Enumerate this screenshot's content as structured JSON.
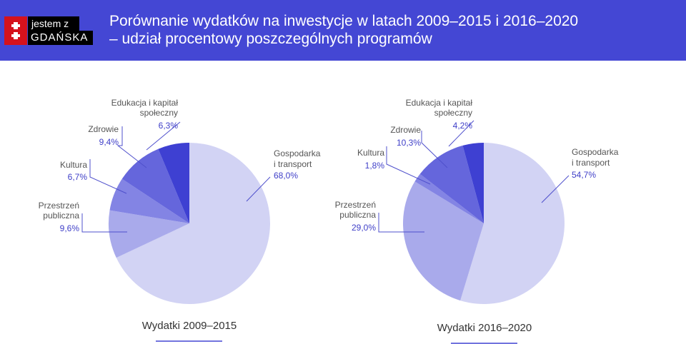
{
  "logo": {
    "line1": "jestem z",
    "line2": "GDAŃSKA"
  },
  "title": {
    "line1": "Porównanie wydatków na inwestycje w latach 2009–2015 i 2016–2020",
    "line2": "– udział procentowy poszczególnych programów"
  },
  "colors": {
    "header": "#4447d4",
    "gospodarka": "#d2d3f4",
    "przestrzen": "#a9aaeb",
    "kultura": "#8384e4",
    "zdrowie": "#6566dc",
    "edukacja": "#3e40d2",
    "accent": "#3f3fc8"
  },
  "chart_data": [
    {
      "type": "pie",
      "caption": "Wydatki 2009–2015",
      "slices": [
        {
          "key": "gospodarka",
          "label": [
            "Gospodarka",
            "i transport"
          ],
          "value": 68.0,
          "value_label": "68,0%"
        },
        {
          "key": "przestrzen",
          "label": [
            "Przestrzeń",
            "publiczna"
          ],
          "value": 9.6,
          "value_label": "9,6%"
        },
        {
          "key": "kultura",
          "label": [
            "Kultura"
          ],
          "value": 6.7,
          "value_label": "6,7%"
        },
        {
          "key": "zdrowie",
          "label": [
            "Zdrowie"
          ],
          "value": 9.4,
          "value_label": "9,4%"
        },
        {
          "key": "edukacja",
          "label": [
            "Edukacja i kapitał",
            "społeczny"
          ],
          "value": 6.3,
          "value_label": "6,3%"
        }
      ]
    },
    {
      "type": "pie",
      "caption": "Wydatki 2016–2020",
      "slices": [
        {
          "key": "gospodarka",
          "label": [
            "Gospodarka",
            "i transport"
          ],
          "value": 54.7,
          "value_label": "54,7%"
        },
        {
          "key": "przestrzen",
          "label": [
            "Przestrzeń",
            "publiczna"
          ],
          "value": 29.0,
          "value_label": "29,0%"
        },
        {
          "key": "kultura",
          "label": [
            "Kultura"
          ],
          "value": 1.8,
          "value_label": "1,8%"
        },
        {
          "key": "zdrowie",
          "label": [
            "Zdrowie"
          ],
          "value": 10.3,
          "value_label": "10,3%"
        },
        {
          "key": "edukacja",
          "label": [
            "Edukacja i kapitał",
            "społeczny"
          ],
          "value": 4.2,
          "value_label": "4,2%"
        }
      ]
    }
  ]
}
